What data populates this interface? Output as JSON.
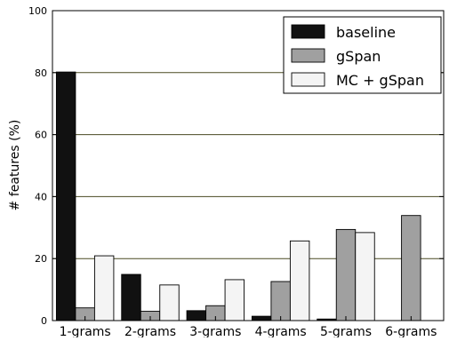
{
  "chart_data": {
    "type": "bar",
    "title": "",
    "xlabel": "",
    "ylabel": "# features (%)",
    "ylim": [
      0,
      100
    ],
    "yticks": [
      0,
      20,
      40,
      60,
      80,
      100
    ],
    "grid": true,
    "legend_position": "top-right",
    "categories": [
      "1-grams",
      "2-grams",
      "3-grams",
      "4-grams",
      "5-grams",
      "6-grams"
    ],
    "series": [
      {
        "name": "baseline",
        "color": "#111111",
        "values": [
          80.2,
          14.9,
          3.2,
          1.4,
          0.5,
          0
        ]
      },
      {
        "name": "gSpan",
        "color": "#a0a0a0",
        "values": [
          4.1,
          3.0,
          4.8,
          12.6,
          29.4,
          33.9
        ]
      },
      {
        "name": "MC + gSpan",
        "color": "#f4f4f4",
        "values": [
          20.9,
          11.5,
          13.2,
          25.7,
          28.4,
          0
        ]
      }
    ]
  }
}
